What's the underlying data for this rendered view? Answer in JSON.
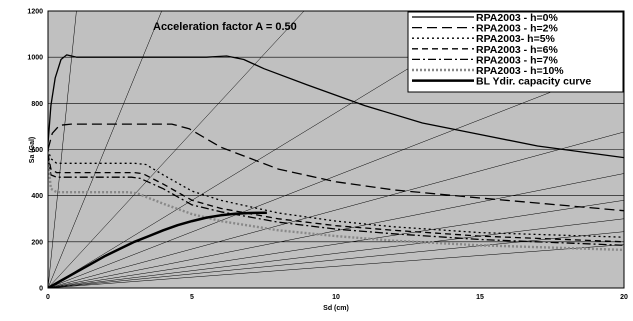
{
  "chart_data": {
    "type": "line",
    "title": "",
    "annotation": "Acceleration factor A = 0.50",
    "xlabel": "Sd (cm)",
    "ylabel": "Sa (Gal)",
    "xlim": [
      0,
      20
    ],
    "ylim": [
      0,
      1200
    ],
    "xticks": [
      "0",
      "5",
      "10",
      "15",
      "20"
    ],
    "yticks": [
      "0",
      "200",
      "400",
      "600",
      "800",
      "1000",
      "1200"
    ],
    "background": "#c0c0c0",
    "grid": "horizontal",
    "legend_position": "top-right",
    "period_lines": {
      "description": "radial constant-period lines",
      "slopes": [
        1216,
        304,
        135,
        76,
        48.6,
        33.8,
        24.8,
        19,
        15,
        12.2,
        9.4
      ]
    },
    "series": [
      {
        "name": "RPA2003 - h=0%",
        "style": "solid",
        "color": "#000000",
        "x": [
          0,
          0.1,
          0.25,
          0.45,
          0.65,
          1.0,
          3.0,
          5.5,
          6.2,
          6.8,
          7.5,
          9,
          11,
          13,
          15,
          17,
          20
        ],
        "y": [
          625,
          790,
          910,
          990,
          1010,
          1000,
          1000,
          1000,
          1005,
          990,
          950,
          880,
          790,
          715,
          665,
          615,
          565
        ]
      },
      {
        "name": "RPA2003 - h=2%",
        "style": "long-dash",
        "color": "#000000",
        "x": [
          0,
          0.15,
          0.4,
          0.8,
          3.0,
          4.3,
          4.9,
          6,
          8,
          10,
          12,
          15,
          20
        ],
        "y": [
          600,
          670,
          705,
          710,
          710,
          710,
          690,
          610,
          515,
          460,
          425,
          390,
          335
        ]
      },
      {
        "name": "RPA2003- h=5%",
        "style": "dotted",
        "color": "#000000",
        "x": [
          0,
          0.1,
          0.3,
          3.0,
          3.4,
          4,
          5,
          6,
          8,
          10,
          12,
          15,
          20
        ],
        "y": [
          600,
          560,
          540,
          540,
          535,
          490,
          420,
          380,
          325,
          290,
          265,
          240,
          220
        ]
      },
      {
        "name": "RPA2003 - h=6%",
        "style": "dash",
        "color": "#000000",
        "x": [
          0,
          0.1,
          0.3,
          3.0,
          3.3,
          4,
          5,
          6,
          8,
          10,
          12,
          15,
          20
        ],
        "y": [
          580,
          515,
          500,
          500,
          495,
          450,
          380,
          345,
          300,
          270,
          250,
          225,
          200
        ]
      },
      {
        "name": "RPA2003 - h=7%",
        "style": "dash-dot",
        "color": "#000000",
        "x": [
          0,
          0.1,
          0.3,
          2.9,
          3.2,
          4,
          5,
          6,
          8,
          10,
          12,
          15,
          20
        ],
        "y": [
          570,
          490,
          480,
          480,
          475,
          430,
          360,
          330,
          285,
          255,
          235,
          210,
          185
        ]
      },
      {
        "name": "RPA2003 - h=10%",
        "style": "gray-dotted",
        "color": "#888888",
        "x": [
          0,
          0.1,
          0.3,
          2.8,
          3.1,
          4,
          5,
          6,
          8,
          10,
          12,
          15,
          20
        ],
        "y": [
          550,
          430,
          415,
          415,
          410,
          365,
          320,
          290,
          250,
          225,
          205,
          185,
          165
        ]
      },
      {
        "name": "BL Ydir. capacity curve",
        "style": "solid-thick",
        "color": "#000000",
        "x": [
          0,
          0.5,
          1,
          1.5,
          2,
          2.5,
          3,
          3.5,
          4,
          4.5,
          5,
          5.5,
          6,
          6.5,
          7,
          7.6
        ],
        "y": [
          0,
          35,
          70,
          105,
          140,
          170,
          200,
          225,
          250,
          272,
          290,
          305,
          315,
          322,
          325,
          326
        ]
      }
    ]
  }
}
